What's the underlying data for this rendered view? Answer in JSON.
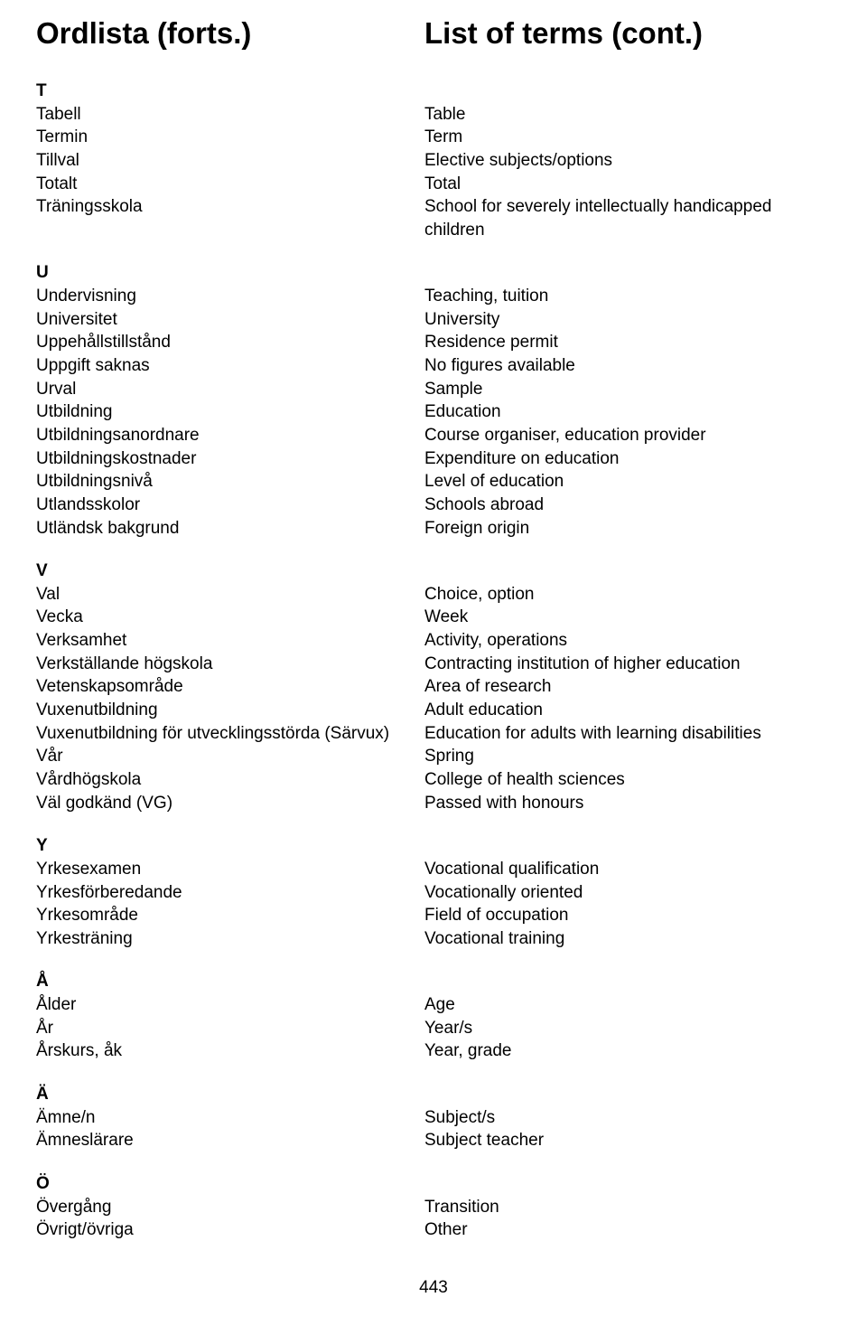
{
  "heading": {
    "left": "Ordlista (forts.)",
    "right": "List of terms (cont.)"
  },
  "sections": {
    "T": {
      "letter": "T",
      "rows": [
        {
          "sv": "Tabell",
          "en": "Table"
        },
        {
          "sv": "Termin",
          "en": "Term"
        },
        {
          "sv": "Tillval",
          "en": "Elective subjects/options"
        },
        {
          "sv": "Totalt",
          "en": "Total"
        },
        {
          "sv": "Träningsskola",
          "en": "School for severely intellectually handicapped children"
        }
      ]
    },
    "U": {
      "letter": "U",
      "rows": [
        {
          "sv": "Undervisning",
          "en": "Teaching, tuition"
        },
        {
          "sv": "Universitet",
          "en": "University"
        },
        {
          "sv": "Uppehållstillstånd",
          "en": "Residence permit"
        },
        {
          "sv": "Uppgift saknas",
          "en": "No figures available"
        },
        {
          "sv": "Urval",
          "en": "Sample"
        },
        {
          "sv": "Utbildning",
          "en": "Education"
        },
        {
          "sv": "Utbildningsanordnare",
          "en": "Course organiser, education provider"
        },
        {
          "sv": "Utbildningskostnader",
          "en": "Expenditure on education"
        },
        {
          "sv": "Utbildningsnivå",
          "en": "Level of education"
        },
        {
          "sv": "Utlandsskolor",
          "en": "Schools abroad"
        },
        {
          "sv": "Utländsk bakgrund",
          "en": "Foreign origin"
        }
      ]
    },
    "V": {
      "letter": "V",
      "rows": [
        {
          "sv": "Val",
          "en": "Choice, option"
        },
        {
          "sv": "Vecka",
          "en": "Week"
        },
        {
          "sv": "Verksamhet",
          "en": "Activity, operations"
        },
        {
          "sv": "Verkställande högskola",
          "en": "Contracting institution of higher education"
        },
        {
          "sv": "Vetenskapsområde",
          "en": "Area of research"
        },
        {
          "sv": "Vuxenutbildning",
          "en": "Adult education"
        },
        {
          "sv": "Vuxenutbildning för utvecklingsstörda (Särvux)",
          "en": "Education for adults with learning disabilities"
        },
        {
          "sv": "Vår",
          "en": "Spring"
        },
        {
          "sv": "Vårdhögskola",
          "en": "College of health sciences"
        },
        {
          "sv": "Väl godkänd (VG)",
          "en": "Passed with honours"
        }
      ]
    },
    "Y": {
      "letter": "Y",
      "rows": [
        {
          "sv": "Yrkesexamen",
          "en": "Vocational qualification"
        },
        {
          "sv": "Yrkesförberedande",
          "en": "Vocationally oriented"
        },
        {
          "sv": "Yrkesområde",
          "en": "Field of occupation"
        },
        {
          "sv": "Yrkesträning",
          "en": "Vocational training"
        }
      ]
    },
    "AA": {
      "letter": "Å",
      "rows": [
        {
          "sv": "Ålder",
          "en": "Age"
        },
        {
          "sv": "År",
          "en": "Year/s"
        },
        {
          "sv": "Årskurs, åk",
          "en": "Year,  grade"
        }
      ]
    },
    "AE": {
      "letter": "Ä",
      "rows": [
        {
          "sv": "Ämne/n",
          "en": "Subject/s"
        },
        {
          "sv": "Ämneslärare",
          "en": "Subject teacher"
        }
      ]
    },
    "OE": {
      "letter": "Ö",
      "rows": [
        {
          "sv": "Övergång",
          "en": "Transition"
        },
        {
          "sv": "Övrigt/övriga",
          "en": "Other"
        }
      ]
    }
  },
  "pageNumber": "443"
}
